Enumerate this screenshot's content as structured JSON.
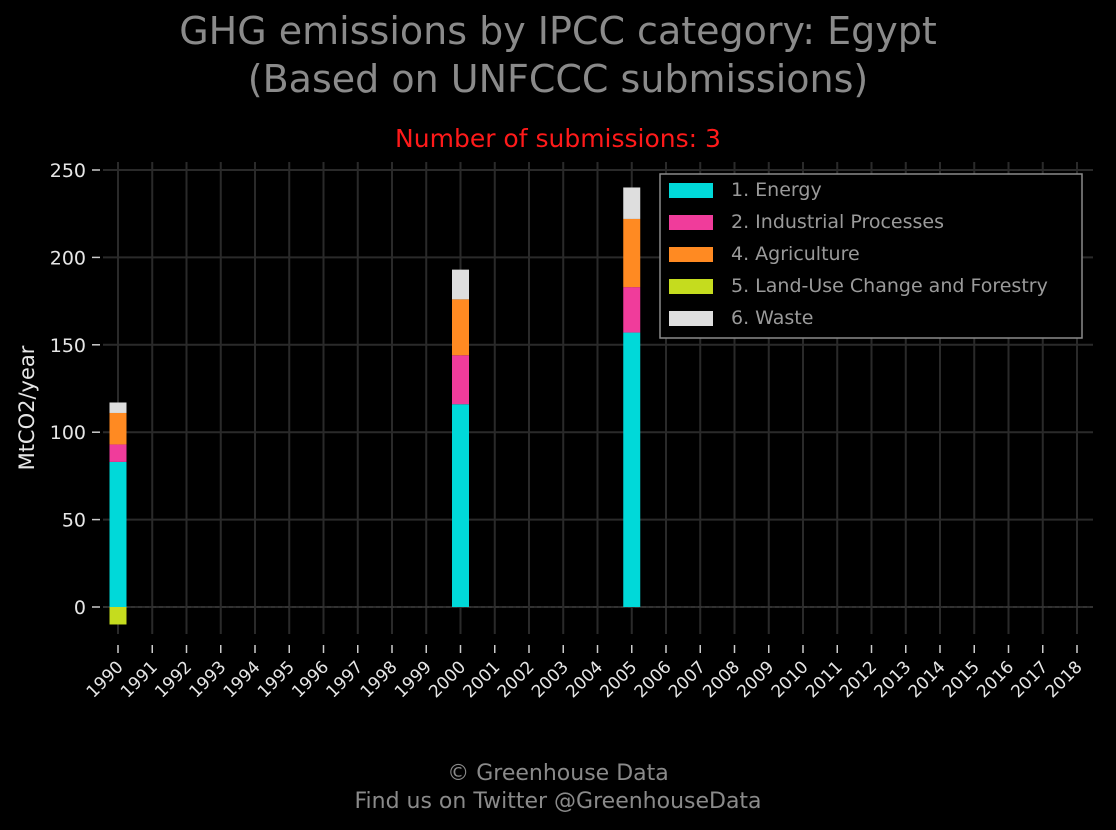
{
  "header": {
    "title_line1": "GHG emissions by IPCC category: Egypt",
    "title_line2": "(Based on UNFCCC submissions)",
    "subtitle": "Number of submissions: 3"
  },
  "footer": {
    "line1": "© Greenhouse Data",
    "line2": "Find us on Twitter @GreenhouseData"
  },
  "chart_data": {
    "type": "bar",
    "stacked": true,
    "ylabel": "MtCO2/year",
    "xlabel": "",
    "ylim": [
      -15,
      255
    ],
    "yticks": [
      0,
      50,
      100,
      150,
      200,
      250
    ],
    "categories": [
      "1990",
      "1991",
      "1992",
      "1993",
      "1994",
      "1995",
      "1996",
      "1997",
      "1998",
      "1999",
      "2000",
      "2001",
      "2002",
      "2003",
      "2004",
      "2005",
      "2006",
      "2007",
      "2008",
      "2009",
      "2010",
      "2011",
      "2012",
      "2013",
      "2014",
      "2015",
      "2016",
      "2017",
      "2018"
    ],
    "grid": true,
    "legend_position": "top-right",
    "series": [
      {
        "name": "1. Energy",
        "color": "#00d9d9",
        "values": [
          83,
          0,
          0,
          0,
          0,
          0,
          0,
          0,
          0,
          0,
          116,
          0,
          0,
          0,
          0,
          157,
          0,
          0,
          0,
          0,
          0,
          0,
          0,
          0,
          0,
          0,
          0,
          0,
          0
        ]
      },
      {
        "name": "2. Industrial Processes",
        "color": "#f03c9b",
        "values": [
          10,
          0,
          0,
          0,
          0,
          0,
          0,
          0,
          0,
          0,
          28,
          0,
          0,
          0,
          0,
          26,
          0,
          0,
          0,
          0,
          0,
          0,
          0,
          0,
          0,
          0,
          0,
          0,
          0
        ]
      },
      {
        "name": "4. Agriculture",
        "color": "#ff8a22",
        "values": [
          18,
          0,
          0,
          0,
          0,
          0,
          0,
          0,
          0,
          0,
          32,
          0,
          0,
          0,
          0,
          39,
          0,
          0,
          0,
          0,
          0,
          0,
          0,
          0,
          0,
          0,
          0,
          0,
          0
        ]
      },
      {
        "name": "5. Land-Use Change and Forestry",
        "color": "#c5dc1e",
        "values": [
          -10,
          0,
          0,
          0,
          0,
          0,
          0,
          0,
          0,
          0,
          0,
          0,
          0,
          0,
          0,
          0,
          0,
          0,
          0,
          0,
          0,
          0,
          0,
          0,
          0,
          0,
          0,
          0,
          0
        ]
      },
      {
        "name": "6. Waste",
        "color": "#dedede",
        "values": [
          6,
          0,
          0,
          0,
          0,
          0,
          0,
          0,
          0,
          0,
          17,
          0,
          0,
          0,
          0,
          18,
          0,
          0,
          0,
          0,
          0,
          0,
          0,
          0,
          0,
          0,
          0,
          0,
          0
        ]
      }
    ]
  }
}
